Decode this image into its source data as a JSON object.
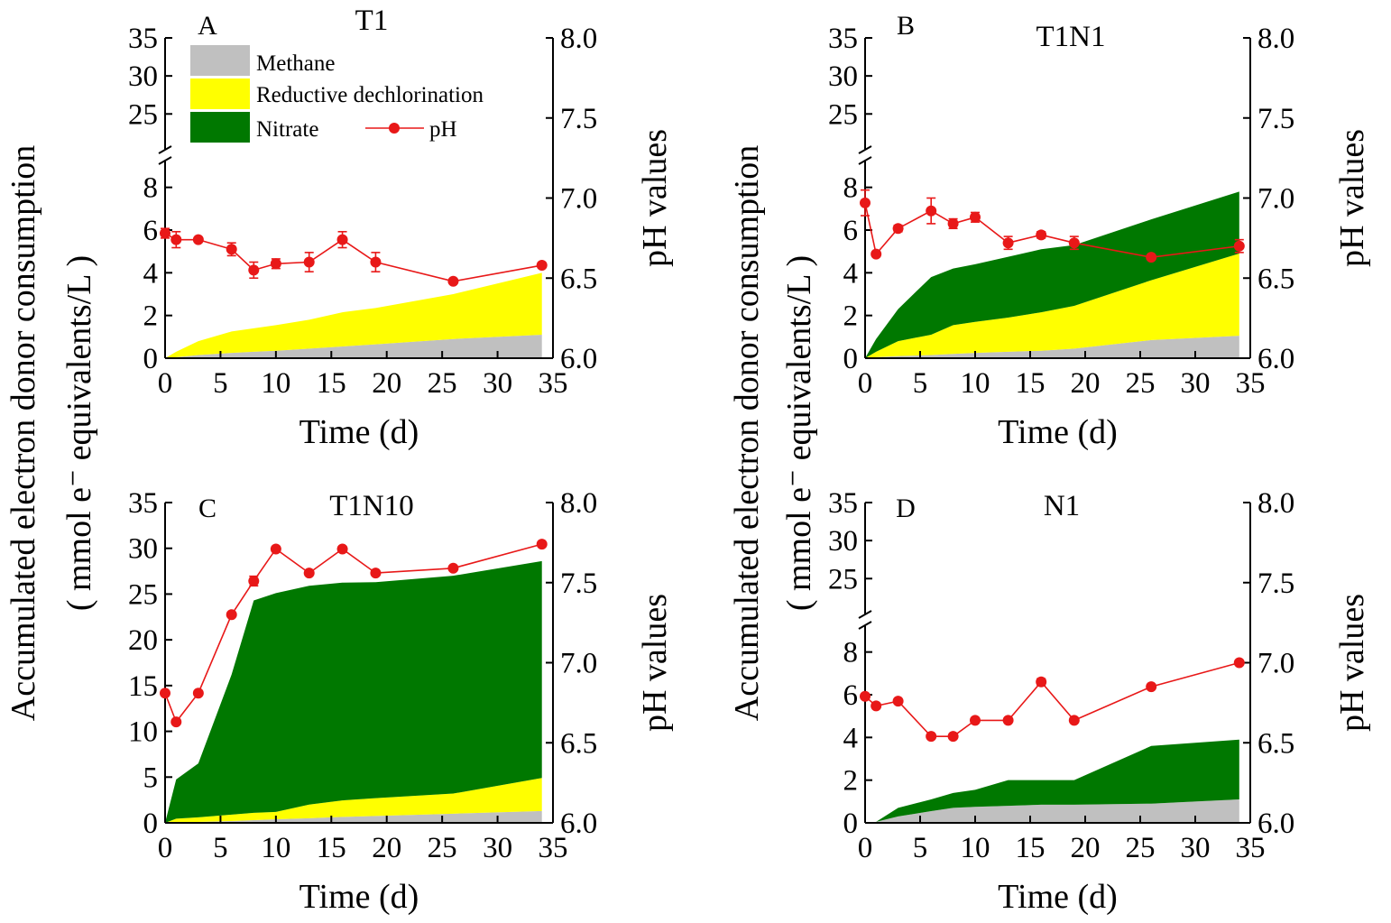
{
  "figure": {
    "shared_ylabel_line1": "Accumulated electron donor consumption",
    "shared_ylabel_line2": "( mmol e⁻ equivalents/L )"
  },
  "legend": {
    "methane": "Methane",
    "dechlorination": "Reductive dechlorination",
    "nitrate": "Nitrate",
    "ph": "pH"
  },
  "colors": {
    "methane": "#c0c0c0",
    "dechlorination": "#ffff00",
    "nitrate": "#007800",
    "ph": "#e81818"
  },
  "chart_data": [
    {
      "type": "area",
      "panel": "A",
      "title": "T1",
      "xlabel": "Time (d)",
      "ylabel": "Accumulated electron donor consumption ( mmol e⁻ equivalents/L )",
      "y2label": "pH values",
      "xlim": [
        0,
        35
      ],
      "xticks": [
        "0",
        "5",
        "10",
        "15",
        "20",
        "25",
        "30",
        "35"
      ],
      "ylim": [
        0,
        35
      ],
      "y_axis_break": [
        9,
        21
      ],
      "yticks_lower": [
        "0",
        "2",
        "4",
        "6",
        "8"
      ],
      "yticks_upper": [
        "25",
        "30",
        "35"
      ],
      "y2lim": [
        6.0,
        8.0
      ],
      "y2ticks": [
        "6.0",
        "6.5",
        "7.0",
        "7.5",
        "8.0"
      ],
      "x": [
        0,
        1,
        3,
        6,
        8,
        10,
        13,
        16,
        19,
        26,
        34
      ],
      "series": [
        {
          "name": "Methane",
          "values": [
            0,
            0.05,
            0.15,
            0.25,
            0.3,
            0.35,
            0.45,
            0.55,
            0.65,
            0.9,
            1.1
          ]
        },
        {
          "name": "Reductive dechlorination",
          "values": [
            0,
            0.25,
            0.65,
            1.0,
            1.1,
            1.2,
            1.35,
            1.6,
            1.7,
            2.1,
            2.9
          ]
        },
        {
          "name": "Nitrate",
          "values": [
            0,
            0,
            0,
            0,
            0,
            0,
            0,
            0,
            0,
            0,
            0
          ]
        }
      ],
      "ph": {
        "x": [
          0,
          1,
          3,
          6,
          8,
          10,
          13,
          16,
          19,
          26,
          34
        ],
        "values": [
          6.78,
          6.74,
          6.74,
          6.68,
          6.55,
          6.59,
          6.6,
          6.74,
          6.6,
          6.48,
          6.58
        ],
        "error": [
          0.03,
          0.05,
          0.0,
          0.04,
          0.05,
          0.03,
          0.06,
          0.05,
          0.06,
          0.0,
          0.0
        ]
      }
    },
    {
      "type": "area",
      "panel": "B",
      "title": "T1N1",
      "xlabel": "Time (d)",
      "ylabel": "Accumulated electron donor consumption ( mmol e⁻ equivalents/L )",
      "y2label": "pH values",
      "xlim": [
        0,
        35
      ],
      "xticks": [
        "0",
        "5",
        "10",
        "15",
        "20",
        "25",
        "30",
        "35"
      ],
      "ylim": [
        0,
        35
      ],
      "y_axis_break": [
        9,
        21
      ],
      "yticks_lower": [
        "0",
        "2",
        "4",
        "6",
        "8"
      ],
      "yticks_upper": [
        "25",
        "30",
        "35"
      ],
      "y2lim": [
        6.0,
        8.0
      ],
      "y2ticks": [
        "6.0",
        "6.5",
        "7.0",
        "7.5",
        "8.0"
      ],
      "x": [
        0,
        1,
        3,
        6,
        8,
        10,
        13,
        16,
        19,
        26,
        34
      ],
      "series": [
        {
          "name": "Methane",
          "values": [
            0,
            0.05,
            0.1,
            0.15,
            0.2,
            0.25,
            0.3,
            0.35,
            0.45,
            0.85,
            1.05
          ]
        },
        {
          "name": "Reductive dechlorination",
          "values": [
            0,
            0.25,
            0.7,
            0.95,
            1.35,
            1.45,
            1.6,
            1.8,
            2.0,
            2.8,
            3.85
          ]
        },
        {
          "name": "Nitrate",
          "values": [
            0,
            0.6,
            1.5,
            2.7,
            2.65,
            2.7,
            2.85,
            2.95,
            2.85,
            2.85,
            2.9
          ]
        }
      ],
      "ph": {
        "x": [
          0,
          1,
          3,
          6,
          8,
          10,
          13,
          16,
          19,
          26,
          34
        ],
        "values": [
          6.97,
          6.65,
          6.81,
          6.92,
          6.84,
          6.88,
          6.72,
          6.77,
          6.72,
          6.63,
          6.7
        ],
        "error": [
          0.08,
          0.0,
          0.02,
          0.08,
          0.03,
          0.03,
          0.04,
          0.02,
          0.04,
          0.0,
          0.04
        ]
      }
    },
    {
      "type": "area",
      "panel": "C",
      "title": "T1N10",
      "xlabel": "Time (d)",
      "ylabel": "Accumulated electron donor consumption ( mmol e⁻ equivalents/L )",
      "y2label": "pH values",
      "xlim": [
        0,
        35
      ],
      "xticks": [
        "0",
        "5",
        "10",
        "15",
        "20",
        "25",
        "30",
        "35"
      ],
      "ylim": [
        0,
        35
      ],
      "yticks": [
        "0",
        "5",
        "10",
        "15",
        "20",
        "25",
        "30",
        "35"
      ],
      "y2lim": [
        6.0,
        8.0
      ],
      "y2ticks": [
        "6.0",
        "6.5",
        "7.0",
        "7.5",
        "8.0"
      ],
      "x": [
        0,
        1,
        3,
        6,
        8,
        10,
        13,
        16,
        19,
        26,
        34
      ],
      "series": [
        {
          "name": "Methane",
          "values": [
            0,
            0.05,
            0.1,
            0.2,
            0.3,
            0.4,
            0.5,
            0.65,
            0.75,
            1.0,
            1.3
          ]
        },
        {
          "name": "Reductive dechlorination",
          "values": [
            0,
            0.4,
            0.5,
            0.7,
            0.8,
            0.8,
            1.5,
            1.8,
            1.95,
            2.2,
            3.6
          ]
        },
        {
          "name": "Nitrate",
          "values": [
            0,
            4.3,
            5.9,
            15.3,
            23.2,
            23.9,
            23.9,
            23.8,
            23.6,
            23.8,
            23.7
          ]
        }
      ],
      "ph": {
        "x": [
          0,
          1,
          3,
          6,
          8,
          10,
          13,
          16,
          19,
          26,
          34
        ],
        "values": [
          6.81,
          6.63,
          6.81,
          7.3,
          7.51,
          7.71,
          7.56,
          7.71,
          7.56,
          7.59,
          7.74
        ],
        "error": [
          0.0,
          0.0,
          0.0,
          0.0,
          0.03,
          0.0,
          0.0,
          0.0,
          0.0,
          0.0,
          0.0
        ]
      }
    },
    {
      "type": "area",
      "panel": "D",
      "title": "N1",
      "xlabel": "Time (d)",
      "ylabel": "Accumulated electron donor consumption ( mmol e⁻ equivalents/L )",
      "y2label": "pH values",
      "xlim": [
        0,
        35
      ],
      "xticks": [
        "0",
        "5",
        "10",
        "15",
        "20",
        "25",
        "30",
        "35"
      ],
      "ylim": [
        0,
        35
      ],
      "y_axis_break": [
        9,
        21
      ],
      "yticks_lower": [
        "0",
        "2",
        "4",
        "6",
        "8"
      ],
      "yticks_upper": [
        "25",
        "30",
        "35"
      ],
      "y2lim": [
        6.0,
        8.0
      ],
      "y2ticks": [
        "6.0",
        "6.5",
        "7.0",
        "7.5",
        "8.0"
      ],
      "x": [
        0,
        1,
        3,
        6,
        8,
        10,
        13,
        16,
        19,
        26,
        34
      ],
      "series": [
        {
          "name": "Methane",
          "values": [
            0,
            0.05,
            0.3,
            0.55,
            0.7,
            0.75,
            0.8,
            0.85,
            0.85,
            0.9,
            1.1
          ]
        },
        {
          "name": "Reductive dechlorination",
          "values": [
            0,
            0,
            0,
            0,
            0,
            0,
            0,
            0,
            0,
            0,
            0
          ]
        },
        {
          "name": "Nitrate",
          "values": [
            0,
            0.0,
            0.4,
            0.55,
            0.7,
            0.8,
            1.2,
            1.15,
            1.15,
            2.7,
            2.8
          ]
        }
      ],
      "ph": {
        "x": [
          0,
          1,
          3,
          6,
          8,
          10,
          13,
          16,
          19,
          26,
          34
        ],
        "values": [
          6.79,
          6.73,
          6.76,
          6.54,
          6.54,
          6.64,
          6.64,
          6.88,
          6.64,
          6.85,
          7.0
        ],
        "error": [
          0.0,
          0.0,
          0.0,
          0.0,
          0.0,
          0.0,
          0.0,
          0.02,
          0.0,
          0.0,
          0.0
        ]
      }
    }
  ]
}
